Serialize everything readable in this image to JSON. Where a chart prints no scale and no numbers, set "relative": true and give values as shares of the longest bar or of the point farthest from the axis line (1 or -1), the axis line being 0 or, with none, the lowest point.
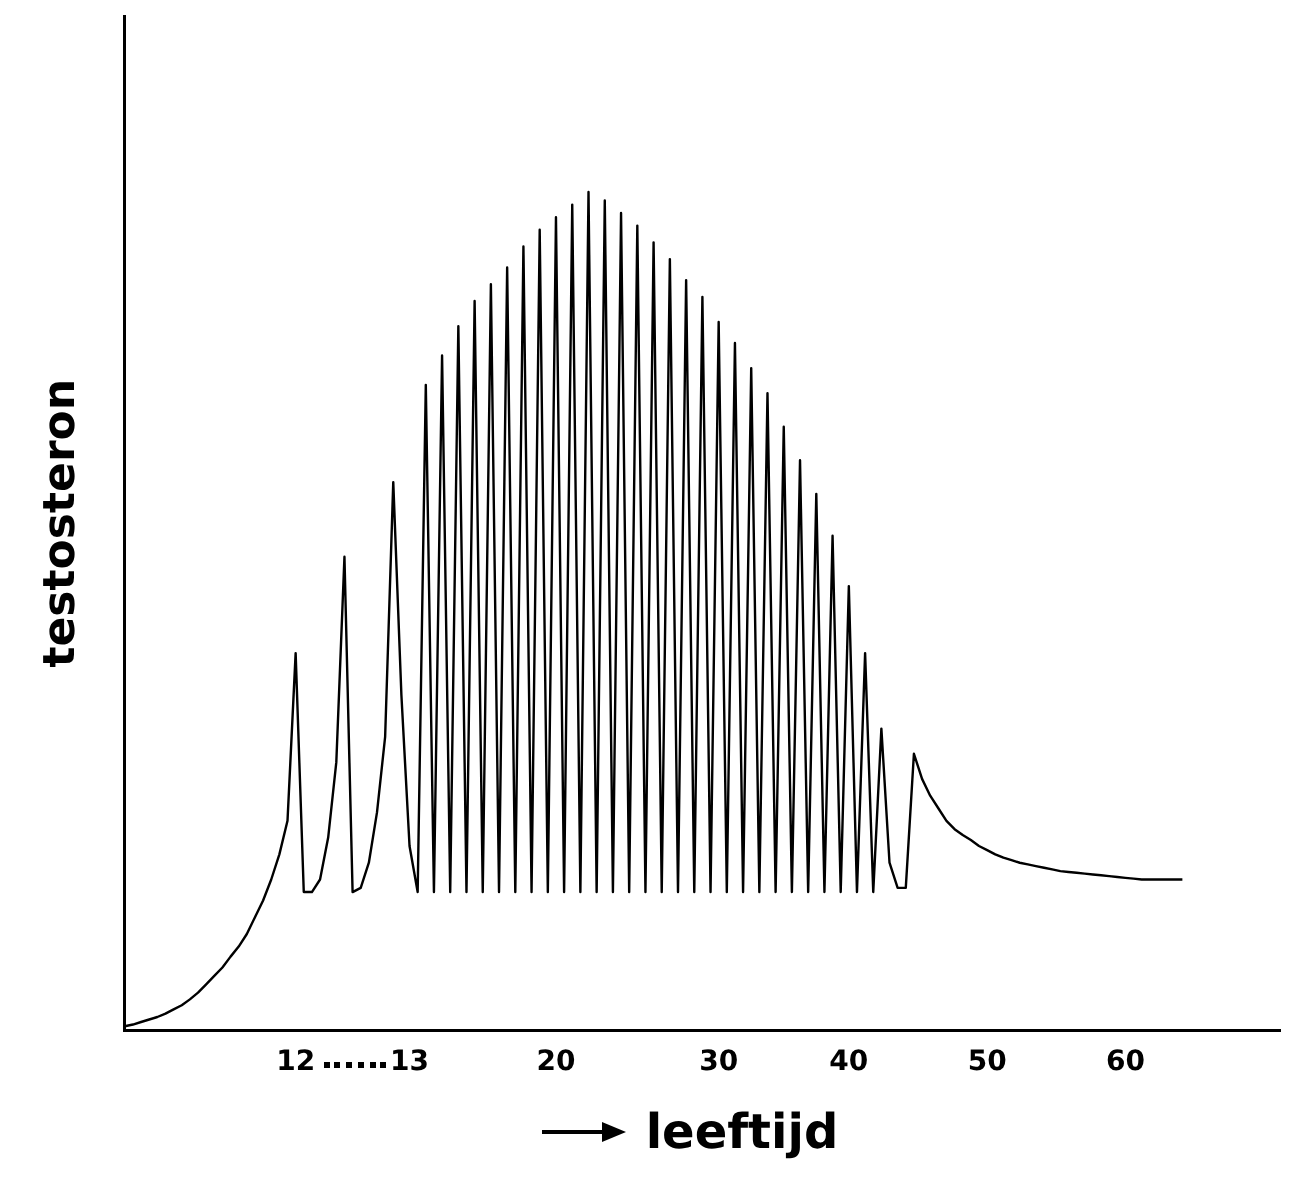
{
  "chart_data": {
    "type": "line",
    "relative": true,
    "xlabel": "leeftijd",
    "ylabel": "testosteron",
    "marker": "none",
    "line_style": "solid",
    "categories": [
      null,
      null,
      null,
      null,
      null,
      null,
      null,
      null,
      null,
      null,
      null,
      null,
      null,
      null,
      null,
      null,
      null,
      null,
      null,
      null,
      null,
      "12",
      null,
      null,
      null,
      null,
      null,
      null,
      null,
      null,
      null,
      null,
      null,
      null,
      null,
      "13",
      null,
      null,
      null,
      null,
      null,
      null,
      null,
      null,
      null,
      null,
      null,
      null,
      null,
      null,
      null,
      null,
      null,
      "20",
      null,
      null,
      null,
      null,
      null,
      null,
      null,
      null,
      null,
      null,
      null,
      null,
      null,
      null,
      null,
      null,
      null,
      null,
      null,
      "30",
      null,
      null,
      null,
      null,
      null,
      null,
      null,
      null,
      null,
      null,
      null,
      null,
      null,
      null,
      null,
      "40",
      null,
      null,
      null,
      null,
      null,
      null,
      null,
      null,
      null,
      null,
      null,
      null,
      null,
      null,
      null,
      null,
      "50",
      null,
      null,
      null,
      null,
      null,
      null,
      null,
      null,
      null,
      null,
      null,
      null,
      null,
      null,
      null,
      null,
      "60",
      null,
      null,
      null,
      null,
      null,
      null,
      null,
      null,
      null,
      null,
      null,
      null,
      null,
      null,
      null,
      null,
      null,
      null,
      null
    ],
    "series": [
      {
        "color": "#000000",
        "values": [
          0.005,
          0.007,
          0.01,
          0.013,
          0.016,
          0.02,
          0.025,
          0.03,
          0.037,
          0.045,
          0.055,
          0.065,
          0.075,
          0.088,
          0.1,
          0.115,
          0.135,
          0.155,
          0.18,
          0.21,
          0.25,
          0.45,
          0.165,
          0.165,
          0.18,
          0.23,
          0.32,
          0.565,
          0.165,
          0.17,
          0.2,
          0.26,
          0.35,
          0.654,
          0.4,
          0.22,
          0.165,
          0.77,
          0.165,
          0.805,
          0.165,
          0.84,
          0.165,
          0.87,
          0.165,
          0.89,
          0.165,
          0.91,
          0.165,
          0.935,
          0.165,
          0.955,
          0.165,
          0.97,
          0.165,
          0.985,
          0.165,
          1,
          0.165,
          0.99,
          0.165,
          0.975,
          0.165,
          0.96,
          0.165,
          0.94,
          0.165,
          0.92,
          0.165,
          0.895,
          0.165,
          0.875,
          0.165,
          0.845,
          0.165,
          0.82,
          0.165,
          0.79,
          0.165,
          0.76,
          0.165,
          0.72,
          0.165,
          0.68,
          0.165,
          0.64,
          0.165,
          0.59,
          0.165,
          0.53,
          0.165,
          0.45,
          0.165,
          0.36,
          0.2,
          0.17,
          0.17,
          0.33,
          0.3,
          0.28,
          0.265,
          0.25,
          0.24,
          0.233,
          0.227,
          0.22,
          0.215,
          0.21,
          0.206,
          0.203,
          0.2,
          0.198,
          0.196,
          0.194,
          0.192,
          0.19,
          0.189,
          0.188,
          0.187,
          0.186,
          0.185,
          0.184,
          0.183,
          0.182,
          0.181,
          0.18,
          0.18,
          0.18,
          0.18,
          0.18,
          0.18,
          null,
          null,
          null,
          null,
          null,
          null,
          null,
          null,
          null,
          null,
          null,
          null
        ]
      }
    ]
  }
}
